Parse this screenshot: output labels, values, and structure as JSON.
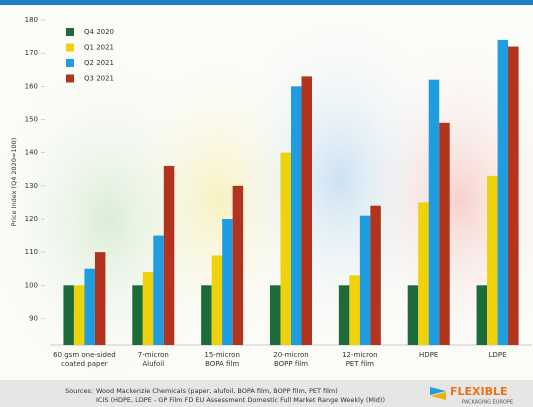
{
  "chart_data": {
    "type": "bar",
    "y_label": "Price Index (Q4 2020=100)",
    "categories": [
      "60 gsm one-sided\ncoated paper",
      "7-micron\nAlufoil",
      "15-micron\nBOPA film",
      "20-micron\nBOPP film",
      "12-micron\nPET film",
      "HDPE",
      "LDPE"
    ],
    "series": [
      {
        "name": "Q4 2020",
        "color": "#1d6b38",
        "values": [
          100,
          100,
          100,
          100,
          100,
          100,
          100
        ]
      },
      {
        "name": "Q1 2021",
        "color": "#efd20a",
        "values": [
          100,
          104,
          109,
          140,
          103,
          125,
          133
        ]
      },
      {
        "name": "Q2 2021",
        "color": "#1e9de0",
        "values": [
          105,
          115,
          120,
          160,
          121,
          162,
          174
        ]
      },
      {
        "name": "Q3 2021",
        "color": "#b2341f",
        "values": [
          110,
          136,
          130,
          163,
          124,
          149,
          172
        ]
      }
    ],
    "ylim": [
      82,
      180
    ],
    "yticks": [
      90,
      100,
      110,
      120,
      130,
      140,
      150,
      160,
      170,
      180
    ],
    "legend": "upper-left",
    "grid": false
  },
  "footer": {
    "sources_label": "Sources:",
    "lines": [
      "Wood Mackenzie Chemicals (paper, alufoil, BOPA film, BOPP film, PET film)",
      "ICIS (HDPE, LDPE - GP Film FD EU Assessment Domestic Full Market Range Weekly (Mid))"
    ],
    "logo_main": "FLEXIBLE",
    "logo_sub": "PACKAGING EUROPE"
  }
}
